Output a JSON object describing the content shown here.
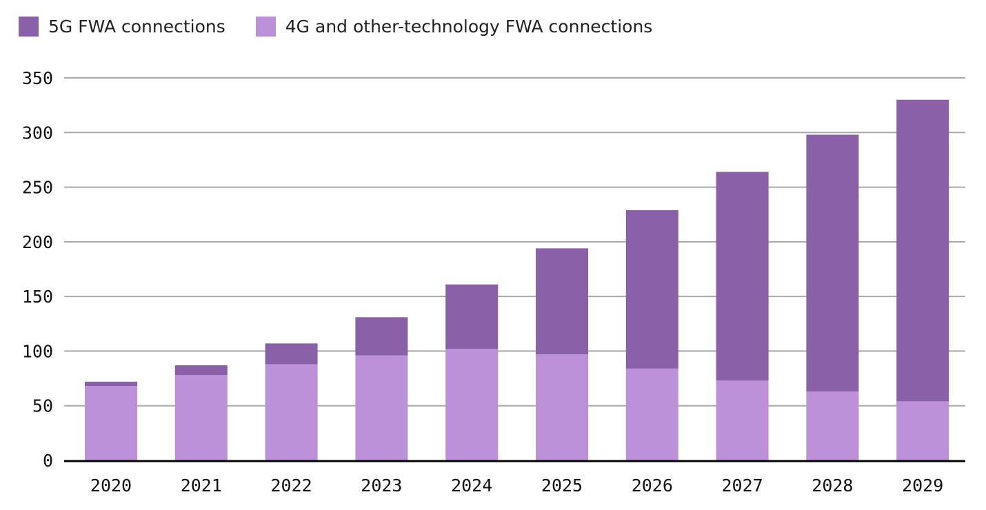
{
  "chart_data": {
    "type": "bar",
    "stacked": true,
    "categories": [
      "2020",
      "2021",
      "2022",
      "2023",
      "2024",
      "2025",
      "2026",
      "2027",
      "2028",
      "2029"
    ],
    "series": [
      {
        "name": "4G and other-technology FWA connections",
        "color": "#bc91d9",
        "values": [
          68,
          78,
          88,
          96,
          102,
          97,
          84,
          73,
          63,
          54
        ]
      },
      {
        "name": "5G FWA connections",
        "color": "#8a60a8",
        "values": [
          4,
          9,
          19,
          35,
          59,
          97,
          145,
          191,
          235,
          276
        ]
      }
    ],
    "ylim": [
      0,
      350
    ],
    "yticks": [
      0,
      50,
      100,
      150,
      200,
      250,
      300,
      350
    ],
    "grid": true,
    "legend_position": "top-left",
    "title": "",
    "xlabel": "",
    "ylabel": ""
  },
  "legend": [
    {
      "label": "5G FWA connections",
      "color": "#8a60a8"
    },
    {
      "label": "4G and other-technology FWA connections",
      "color": "#bc91d9"
    }
  ]
}
